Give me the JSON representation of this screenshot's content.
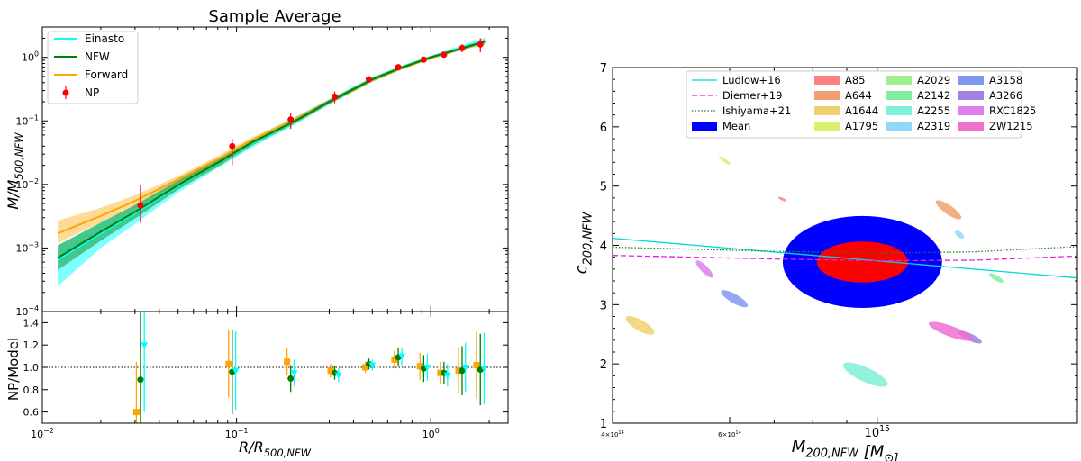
{
  "chart_data": [
    {
      "type": "line",
      "panel": "mass-profile",
      "title": "Sample Average",
      "xlabel": "R/R_500,NFW",
      "ylabel": "M/M_500,NFW",
      "xscale": "log",
      "yscale": "log",
      "xlim": [
        0.01,
        2.5
      ],
      "ylim": [
        0.0001,
        3
      ],
      "xticks": [
        0.01,
        0.1,
        1.0
      ],
      "xtick_labels": [
        "10^-2",
        "10^-1",
        "10^0"
      ],
      "yticks": [
        0.0001,
        0.001,
        0.01,
        0.1,
        1.0
      ],
      "ytick_labels": [
        "10^-4",
        "10^-3",
        "10^-2",
        "10^-1",
        "10^0"
      ],
      "legend_position": "top-left",
      "series": [
        {
          "name": "Einasto",
          "color": "#00ffff",
          "x": [
            0.012,
            0.02,
            0.03,
            0.05,
            0.08,
            0.12,
            0.2,
            0.3,
            0.5,
            0.7,
            1.0,
            1.4,
            1.9
          ],
          "y": [
            0.00065,
            0.0017,
            0.0035,
            0.0095,
            0.022,
            0.045,
            0.1,
            0.2,
            0.45,
            0.68,
            1.0,
            1.38,
            1.82
          ],
          "lower": [
            0.00025,
            0.001,
            0.0024,
            0.0075,
            0.018,
            0.038,
            0.088,
            0.18,
            0.41,
            0.63,
            0.93,
            1.25,
            1.6
          ],
          "upper": [
            0.0011,
            0.0025,
            0.0048,
            0.012,
            0.026,
            0.052,
            0.115,
            0.22,
            0.49,
            0.73,
            1.07,
            1.5,
            2.05
          ]
        },
        {
          "name": "NFW",
          "color": "#008000",
          "x": [
            0.012,
            0.02,
            0.03,
            0.05,
            0.08,
            0.12,
            0.2,
            0.3,
            0.5,
            0.7,
            1.0,
            1.4,
            1.9
          ],
          "y": [
            0.0007,
            0.0018,
            0.0037,
            0.0098,
            0.022,
            0.046,
            0.1,
            0.2,
            0.45,
            0.68,
            1.0,
            1.35,
            1.78
          ],
          "lower": [
            0.00045,
            0.0013,
            0.0029,
            0.0083,
            0.019,
            0.041,
            0.091,
            0.185,
            0.42,
            0.64,
            0.95,
            1.28,
            1.65
          ],
          "upper": [
            0.0011,
            0.0025,
            0.0047,
            0.0115,
            0.025,
            0.051,
            0.109,
            0.215,
            0.48,
            0.72,
            1.05,
            1.42,
            1.9
          ]
        },
        {
          "name": "Forward",
          "color": "#ffa500",
          "x": [
            0.012,
            0.02,
            0.03,
            0.05,
            0.08,
            0.12,
            0.2,
            0.3,
            0.5,
            0.7,
            1.0,
            1.4,
            1.9
          ],
          "y": [
            0.0017,
            0.0032,
            0.0055,
            0.012,
            0.025,
            0.05,
            0.105,
            0.2,
            0.44,
            0.67,
            0.98,
            1.33,
            1.75
          ],
          "lower": [
            0.0012,
            0.0025,
            0.0045,
            0.0105,
            0.022,
            0.045,
            0.095,
            0.185,
            0.41,
            0.63,
            0.93,
            1.26,
            1.63
          ],
          "upper": [
            0.0027,
            0.0043,
            0.0068,
            0.0135,
            0.028,
            0.055,
            0.115,
            0.215,
            0.47,
            0.71,
            1.03,
            1.4,
            1.87
          ]
        }
      ],
      "points": {
        "name": "NP",
        "color": "#ff0000",
        "x": [
          0.032,
          0.095,
          0.19,
          0.32,
          0.48,
          0.68,
          0.92,
          1.17,
          1.45,
          1.8
        ],
        "y": [
          0.0047,
          0.04,
          0.105,
          0.24,
          0.45,
          0.7,
          0.92,
          1.1,
          1.4,
          1.6
        ],
        "yerr_low": [
          0.0022,
          0.02,
          0.03,
          0.05,
          0.05,
          0.06,
          0.07,
          0.09,
          0.2,
          0.4
        ],
        "yerr_high": [
          0.005,
          0.012,
          0.03,
          0.05,
          0.05,
          0.06,
          0.07,
          0.09,
          0.2,
          0.4
        ]
      }
    },
    {
      "type": "scatter",
      "panel": "residuals",
      "xlabel": "R/R_500,NFW",
      "ylabel": "NP/Model",
      "xscale": "log",
      "xlim": [
        0.01,
        2.5
      ],
      "ylim": [
        0.5,
        1.5
      ],
      "yticks": [
        0.6,
        0.8,
        1.0,
        1.2,
        1.4
      ],
      "ytick_labels": [
        "0.6",
        "0.8",
        "1.0",
        "1.2",
        "1.4"
      ],
      "reference_line": 1.0,
      "series": [
        {
          "name": "Forward",
          "color": "#ffa500",
          "marker": "square",
          "x": [
            0.0305,
            0.091,
            0.182,
            0.305,
            0.46,
            0.65,
            0.88,
            1.12,
            1.39,
            1.72
          ],
          "y": [
            0.6,
            1.03,
            1.05,
            0.97,
            1.0,
            1.07,
            1.01,
            0.95,
            0.97,
            1.02
          ],
          "err": [
            0.45,
            0.3,
            0.12,
            0.06,
            0.05,
            0.08,
            0.12,
            0.1,
            0.2,
            0.3
          ]
        },
        {
          "name": "NFW",
          "color": "#008000",
          "marker": "circle",
          "x": [
            0.032,
            0.095,
            0.19,
            0.32,
            0.48,
            0.68,
            0.92,
            1.17,
            1.45,
            1.8
          ],
          "y": [
            0.89,
            0.96,
            0.9,
            0.95,
            1.03,
            1.09,
            0.99,
            0.95,
            0.97,
            0.98
          ],
          "err": [
            0.7,
            0.38,
            0.12,
            0.06,
            0.05,
            0.08,
            0.12,
            0.1,
            0.22,
            0.32
          ]
        },
        {
          "name": "Einasto",
          "color": "#00ffff",
          "marker": "triangle-down",
          "x": [
            0.0335,
            0.099,
            0.198,
            0.335,
            0.5,
            0.71,
            0.96,
            1.22,
            1.51,
            1.88
          ],
          "y": [
            1.2,
            0.97,
            0.95,
            0.93,
            1.02,
            1.1,
            1.0,
            0.93,
            1.0,
            0.99
          ],
          "err": [
            0.6,
            0.35,
            0.12,
            0.06,
            0.05,
            0.08,
            0.12,
            0.1,
            0.22,
            0.32
          ]
        }
      ]
    },
    {
      "type": "scatter",
      "panel": "concentration-mass",
      "xlabel": "M_200,NFW [M_sun]",
      "ylabel": "c_200,NFW",
      "xscale": "log",
      "xlim": [
        400000000000000,
        2000000000000000
      ],
      "ylim": [
        1,
        7
      ],
      "xticks": [
        400000000000000,
        600000000000000,
        1000000000000000
      ],
      "xtick_labels": [
        "4×10^14",
        "6×10^14",
        "10^15"
      ],
      "yticks": [
        1,
        2,
        3,
        4,
        5,
        6,
        7
      ],
      "ytick_labels": [
        "1",
        "2",
        "3",
        "4",
        "5",
        "6",
        "7"
      ],
      "legend_position": "top",
      "relations": [
        {
          "name": "Ludlow+16",
          "color": "#00d8d8",
          "style": "solid",
          "x": [
            400000000000000,
            2000000000000000
          ],
          "y": [
            4.12,
            3.45
          ]
        },
        {
          "name": "Diemer+19",
          "color": "#e020e0",
          "style": "dashed",
          "x": [
            400000000000000,
            700000000000000,
            1000000000000000,
            1400000000000000,
            2000000000000000
          ],
          "y": [
            3.83,
            3.77,
            3.74,
            3.75,
            3.82
          ]
        },
        {
          "name": "Ishiyama+21",
          "color": "#208020",
          "style": "dotted",
          "x": [
            400000000000000,
            700000000000000,
            1000000000000000,
            1400000000000000,
            2000000000000000
          ],
          "y": [
            3.97,
            3.9,
            3.87,
            3.89,
            3.98
          ]
        }
      ],
      "mean": {
        "name": "Mean",
        "color": "#0000ff",
        "inner_color": "#ff0000",
        "m": 950000000000000,
        "c": 3.72,
        "m_range_outer": [
          720000000000000,
          1250000000000000
        ],
        "c_range_outer": [
          2.95,
          4.5
        ],
        "m_range_inner": [
          810000000000000,
          1110000000000000
        ],
        "c_range_inner": [
          3.38,
          4.07
        ]
      },
      "clusters": [
        {
          "name": "A85",
          "color": "#ff8080",
          "m": 720000000000000,
          "c": 4.78
        },
        {
          "name": "A644",
          "color": "#f0a070",
          "m": 1280000000000000,
          "c": 4.6
        },
        {
          "name": "A1644",
          "color": "#f0d070",
          "m": 440000000000000,
          "c": 2.65
        },
        {
          "name": "A1795",
          "color": "#d8f070",
          "m": 590000000000000,
          "c": 5.43
        },
        {
          "name": "A2029",
          "color": "#a0f090",
          "m": 1080000000000000,
          "c": 6.05
        },
        {
          "name": "A2142",
          "color": "#80f0a0",
          "m": 1510000000000000,
          "c": 3.45
        },
        {
          "name": "A2255",
          "color": "#80f0d8",
          "m": 960000000000000,
          "c": 1.82
        },
        {
          "name": "A2319",
          "color": "#90d8f8",
          "m": 1330000000000000,
          "c": 4.18
        },
        {
          "name": "A3158",
          "color": "#8098f0",
          "m": 610000000000000,
          "c": 3.1
        },
        {
          "name": "A3266",
          "color": "#a080e0",
          "m": 1380000000000000,
          "c": 2.45
        },
        {
          "name": "RXC1825",
          "color": "#e080f0",
          "m": 550000000000000,
          "c": 3.6
        },
        {
          "name": "ZW1215",
          "color": "#f070d0",
          "m": 1290000000000000,
          "c": 2.55
        }
      ]
    }
  ]
}
